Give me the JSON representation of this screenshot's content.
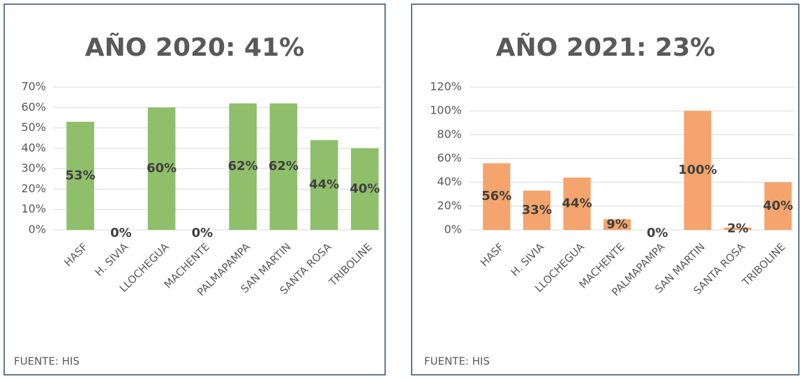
{
  "chart_data": [
    {
      "type": "bar",
      "title": "AÑO 2020: 41%",
      "categories": [
        "HASF",
        "H. SIVIA",
        "LLOCHEGUA",
        "MACHENTE",
        "PALMAPAMPA",
        "SAN MARTIN",
        "SANTA ROSA",
        "TRIBOLINE"
      ],
      "values": [
        53,
        0,
        60,
        0,
        62,
        62,
        44,
        40
      ],
      "value_labels": [
        "53%",
        "0%",
        "60%",
        "0%",
        "62%",
        "62%",
        "44%",
        "40%"
      ],
      "color": "#8fbf6b",
      "ylim": [
        0,
        70
      ],
      "yticks": [
        {
          "value": 0,
          "label": "0%"
        },
        {
          "value": 10,
          "label": "10%"
        },
        {
          "value": 20,
          "label": "20%"
        },
        {
          "value": 30,
          "label": "30%"
        },
        {
          "value": 40,
          "label": "40%"
        },
        {
          "value": 50,
          "label": "50%"
        },
        {
          "value": 60,
          "label": "60%"
        },
        {
          "value": 70,
          "label": "70%"
        }
      ],
      "grid": true,
      "source": "FUENTE: HIS"
    },
    {
      "type": "bar",
      "title": "AÑO 2021: 23%",
      "categories": [
        "HASF",
        "H. SIVIA",
        "LLOCHEGUA",
        "MACHENTE",
        "PALMAPAMPA",
        "SAN MARTIN",
        "SANTA ROSA",
        "TRIBOLINE"
      ],
      "values": [
        56,
        33,
        44,
        9,
        0,
        100,
        2,
        40
      ],
      "value_labels": [
        "56%",
        "33%",
        "44%",
        "9%",
        "0%",
        "100%",
        "2%",
        "40%"
      ],
      "color": "#f4a46c",
      "ylim": [
        0,
        120
      ],
      "yticks": [
        {
          "value": 0,
          "label": "0%"
        },
        {
          "value": 20,
          "label": "20%"
        },
        {
          "value": 40,
          "label": "40%"
        },
        {
          "value": 60,
          "label": "60%"
        },
        {
          "value": 80,
          "label": "80%"
        },
        {
          "value": 100,
          "label": "100%"
        },
        {
          "value": 120,
          "label": "120%"
        }
      ],
      "grid": true,
      "source": "FUENTE: HIS"
    }
  ]
}
